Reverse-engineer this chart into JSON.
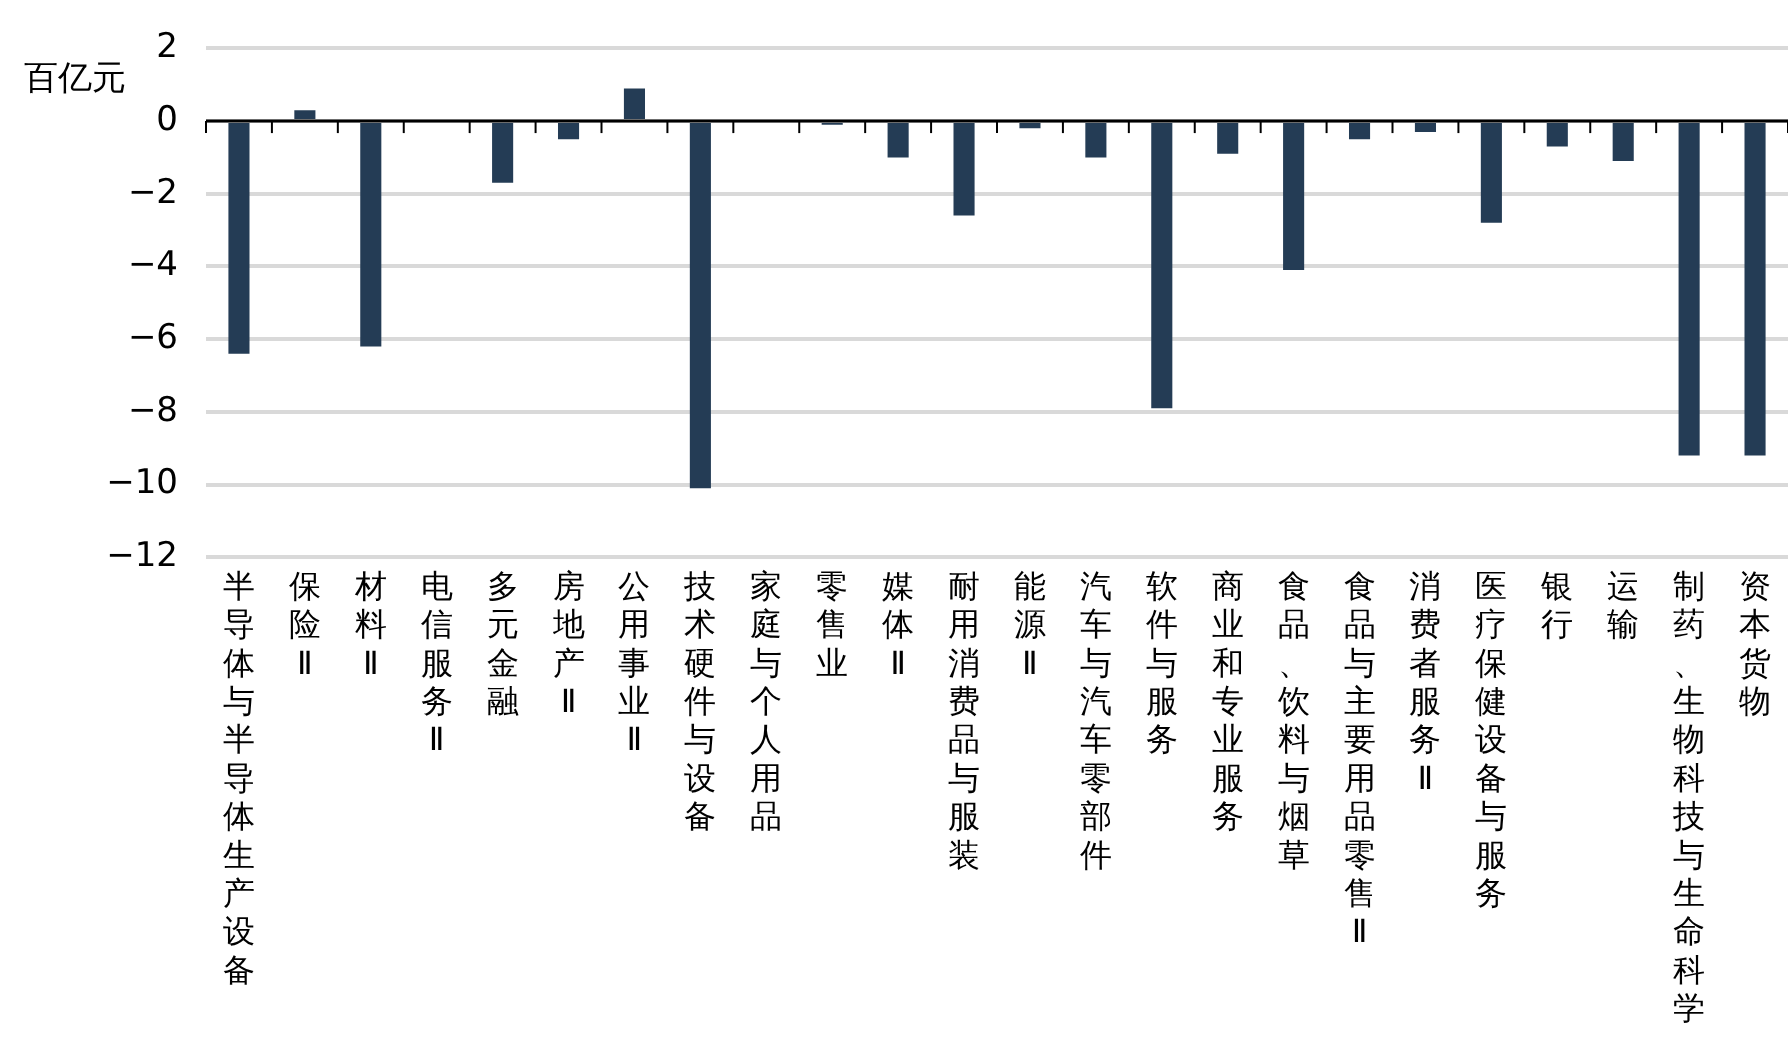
{
  "chart_data": {
    "type": "bar",
    "ylabel": "百亿元",
    "categories": [
      "半导体与半导体生产设备",
      "保险Ⅱ",
      "材料Ⅱ",
      "电信服务Ⅱ",
      "多元金融",
      "房地产Ⅱ",
      "公用事业Ⅱ",
      "技术硬件与设备",
      "家庭与个人用品",
      "零售业",
      "媒体Ⅱ",
      "耐用消费品与服装",
      "能源Ⅱ",
      "汽车与汽车零部件",
      "软件与服务",
      "商业和专业服务",
      "食品、饮料与烟草",
      "食品与主要用品零售Ⅱ",
      "消费者服务Ⅱ",
      "医疗保健设备与服务",
      "银行",
      "运输",
      "制药、生物科技与生命科学",
      "资本货物"
    ],
    "values": [
      -6.4,
      0.3,
      -6.2,
      -0.05,
      -1.7,
      -0.5,
      0.9,
      -10.1,
      -0.05,
      -0.1,
      -1.0,
      -2.6,
      -0.2,
      -1.0,
      -7.9,
      -0.9,
      -4.1,
      -0.5,
      -0.3,
      -2.8,
      -0.7,
      -1.1,
      -9.2,
      -9.2
    ],
    "color": "#243c55",
    "ylim": [
      -12,
      2
    ],
    "yticks": [
      {
        "value": -12,
        "label": "−12"
      },
      {
        "value": -10,
        "label": "−10"
      },
      {
        "value": -8,
        "label": "−8"
      },
      {
        "value": -6,
        "label": "−6"
      },
      {
        "value": -4,
        "label": "−4"
      },
      {
        "value": -2,
        "label": "−2"
      },
      0,
      2
    ],
    "grid": "y",
    "legend": false
  }
}
